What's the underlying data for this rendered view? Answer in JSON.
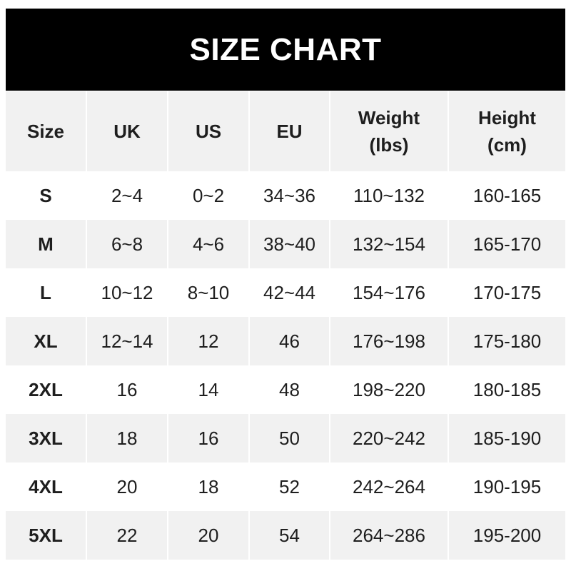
{
  "title": "SIZE CHART",
  "headers": [
    {
      "line1": "Size",
      "line2": ""
    },
    {
      "line1": "UK",
      "line2": ""
    },
    {
      "line1": "US",
      "line2": ""
    },
    {
      "line1": "EU",
      "line2": ""
    },
    {
      "line1": "Weight",
      "line2": "(lbs)"
    },
    {
      "line1": "Height",
      "line2": "(cm)"
    }
  ],
  "rows": [
    [
      "S",
      "2~4",
      "0~2",
      "34~36",
      "110~132",
      "160-165"
    ],
    [
      "M",
      "6~8",
      "4~6",
      "38~40",
      "132~154",
      "165-170"
    ],
    [
      "L",
      "10~12",
      "8~10",
      "42~44",
      "154~176",
      "170-175"
    ],
    [
      "XL",
      "12~14",
      "12",
      "46",
      "176~198",
      "175-180"
    ],
    [
      "2XL",
      "16",
      "14",
      "48",
      "198~220",
      "180-185"
    ],
    [
      "3XL",
      "18",
      "16",
      "50",
      "220~242",
      "185-190"
    ],
    [
      "4XL",
      "20",
      "18",
      "52",
      "242~264",
      "190-195"
    ],
    [
      "5XL",
      "22",
      "20",
      "54",
      "264~286",
      "195-200"
    ]
  ],
  "colors": {
    "title_bg": "#000000",
    "title_text": "#ffffff",
    "stripe": "#f1f1f1",
    "text": "#1e1e1e"
  }
}
